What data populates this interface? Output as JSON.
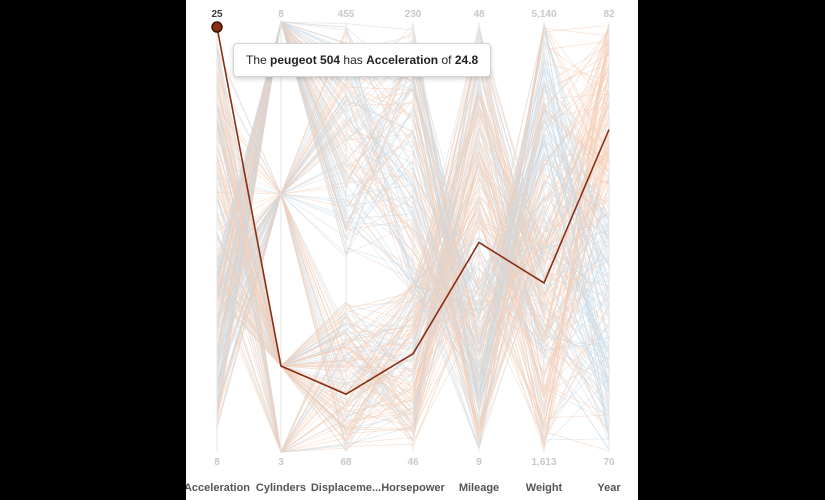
{
  "chart_data": {
    "type": "parallel-coordinates",
    "title": "",
    "axes": [
      {
        "name": "Acceleration",
        "min": "8",
        "max": "25",
        "min_value": 8,
        "max_value": 25
      },
      {
        "name": "Cylinders",
        "min": "3",
        "max": "8",
        "min_value": 3,
        "max_value": 8
      },
      {
        "name": "Displaceme...",
        "min": "68",
        "max": "455",
        "min_value": 68,
        "max_value": 455
      },
      {
        "name": "Horsepower",
        "min": "46",
        "max": "230",
        "min_value": 46,
        "max_value": 230
      },
      {
        "name": "Mileage",
        "min": "9",
        "max": "48",
        "min_value": 9,
        "max_value": 48
      },
      {
        "name": "Weight",
        "min": "1,613",
        "max": "5,140",
        "min_value": 1613,
        "max_value": 5140
      },
      {
        "name": "Year",
        "min": "70",
        "max": "82",
        "min_value": 70,
        "max_value": 82
      }
    ],
    "highlighted": {
      "name": "peugeot 504",
      "values": [
        24.8,
        4,
        120,
        88,
        28,
        3000,
        79
      ]
    },
    "colors": {
      "low": "#f4cdb6",
      "high": "#c9dbe8",
      "highlight": "#8b2d12"
    },
    "background_line_count": 260
  },
  "tooltip": {
    "prefix": "The",
    "car": "peugeot 504",
    "middle": "has",
    "attribute": "Acceleration",
    "of": "of",
    "value": "24.8"
  }
}
